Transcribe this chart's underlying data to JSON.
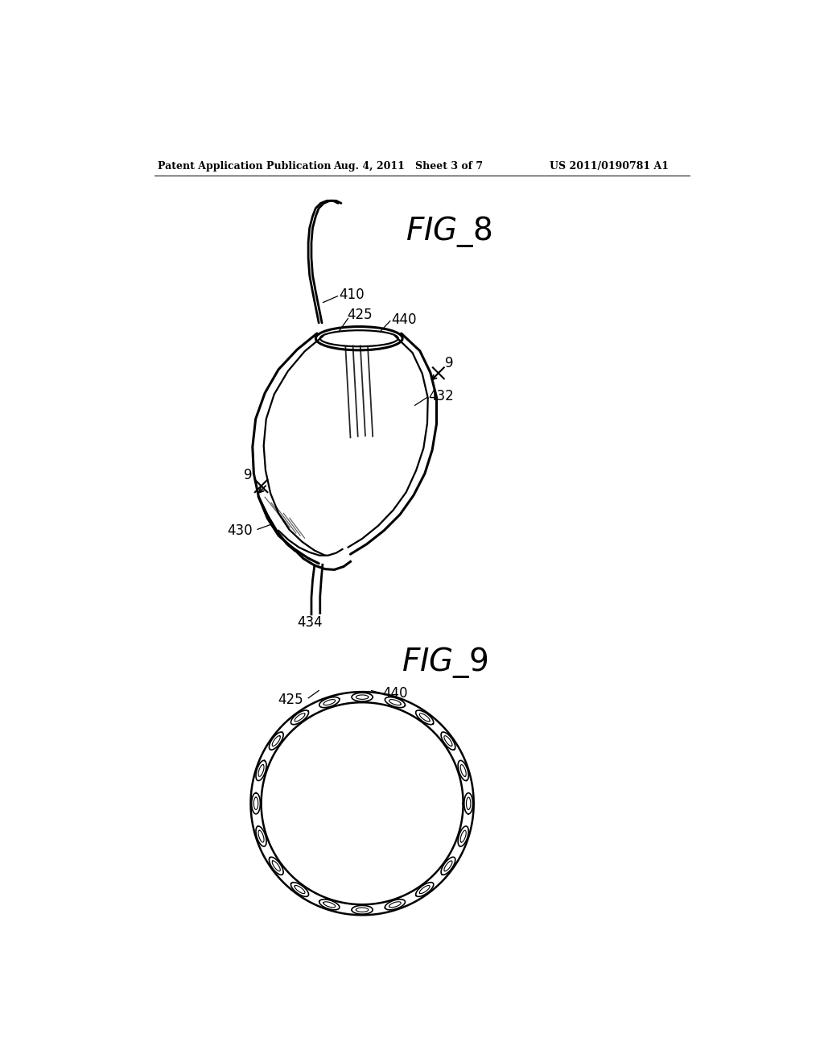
{
  "bg_color": "#ffffff",
  "header_left": "Patent Application Publication",
  "header_mid": "Aug. 4, 2011   Sheet 3 of 7",
  "header_right": "US 2011/0190781 A1",
  "label_410": "410",
  "label_425_top": "425",
  "label_440_top": "440",
  "label_9a": "9",
  "label_9b": "9",
  "label_432": "432",
  "label_430": "430",
  "label_434": "434",
  "label_425_bot": "425",
  "label_440_bot": "440"
}
